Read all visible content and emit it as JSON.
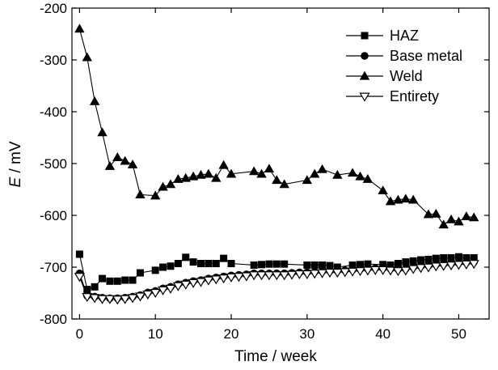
{
  "chart_data": {
    "type": "line",
    "title": "",
    "xlabel": "Time / week",
    "ylabel_italic": "E",
    "ylabel_rest": " / mV",
    "xlim": [
      -1,
      54
    ],
    "ylim": [
      -800,
      -200
    ],
    "xticks": [
      0,
      10,
      20,
      30,
      40,
      50
    ],
    "yticks": [
      -200,
      -300,
      -400,
      -500,
      -600,
      -700,
      -800
    ],
    "grid": false,
    "legend_position": "top-right",
    "series": [
      {
        "name": "HAZ",
        "marker": "square",
        "x": [
          0,
          1,
          2,
          3,
          4,
          5,
          6,
          7,
          8,
          10,
          11,
          12,
          13,
          14,
          15,
          16,
          17,
          18,
          19,
          20,
          23,
          24,
          25,
          26,
          27,
          30,
          31,
          32,
          33,
          34,
          36,
          37,
          38,
          40,
          41,
          42,
          43,
          44,
          45,
          46,
          47,
          48,
          49,
          50,
          51,
          52
        ],
        "y": [
          -675,
          -743,
          -738,
          -722,
          -727,
          -727,
          -725,
          -725,
          -711,
          -706,
          -700,
          -698,
          -693,
          -681,
          -690,
          -693,
          -693,
          -693,
          -683,
          -693,
          -696,
          -695,
          -694,
          -694,
          -694,
          -696,
          -696,
          -696,
          -697,
          -700,
          -696,
          -695,
          -694,
          -695,
          -696,
          -693,
          -690,
          -688,
          -686,
          -685,
          -683,
          -682,
          -682,
          -680,
          -682,
          -682
        ]
      },
      {
        "name": "Base metal",
        "marker": "circle",
        "x": [
          0,
          1,
          2,
          3,
          4,
          5,
          6,
          7,
          8,
          9,
          10,
          11,
          12,
          13,
          14,
          15,
          16,
          17,
          18,
          19,
          20,
          21,
          22,
          23,
          24,
          25,
          26,
          27,
          28,
          29,
          30,
          31,
          32,
          33,
          34,
          35,
          36,
          37,
          38,
          39,
          40,
          41,
          42,
          43,
          44,
          45,
          46,
          47,
          48,
          49,
          50,
          51,
          52
        ],
        "y": [
          -712,
          -755,
          -757,
          -759,
          -760,
          -760,
          -759,
          -757,
          -754,
          -749,
          -746,
          -741,
          -738,
          -733,
          -730,
          -727,
          -725,
          -722,
          -720,
          -718,
          -716,
          -715,
          -714,
          -712,
          -712,
          -712,
          -712,
          -712,
          -711,
          -710,
          -710,
          -709,
          -708,
          -707,
          -707,
          -706,
          -705,
          -704,
          -703,
          -702,
          -702,
          -703,
          -704,
          -703,
          -700,
          -698,
          -697,
          -695,
          -694,
          -693,
          -692,
          -691,
          -690
        ]
      },
      {
        "name": "Weld",
        "marker": "triangle",
        "x": [
          0,
          1,
          2,
          3,
          4,
          5,
          6,
          7,
          8,
          10,
          11,
          12,
          13,
          14,
          15,
          16,
          17,
          18,
          19,
          20,
          23,
          24,
          25,
          26,
          27,
          30,
          31,
          32,
          34,
          36,
          37,
          38,
          40,
          41,
          42,
          43,
          44,
          46,
          47,
          48,
          49,
          50,
          51,
          52
        ],
        "y": [
          -240,
          -295,
          -380,
          -440,
          -505,
          -488,
          -495,
          -502,
          -560,
          -562,
          -545,
          -540,
          -530,
          -528,
          -525,
          -522,
          -520,
          -528,
          -503,
          -520,
          -515,
          -520,
          -510,
          -532,
          -540,
          -532,
          -520,
          -511,
          -522,
          -518,
          -525,
          -530,
          -552,
          -573,
          -570,
          -568,
          -570,
          -598,
          -597,
          -618,
          -608,
          -612,
          -602,
          -604
        ]
      },
      {
        "name": "Entirety",
        "marker": "triangle-down-open",
        "x": [
          0,
          1,
          2,
          3,
          4,
          5,
          6,
          7,
          8,
          9,
          10,
          11,
          12,
          13,
          14,
          15,
          16,
          17,
          18,
          19,
          20,
          21,
          22,
          23,
          24,
          25,
          26,
          27,
          28,
          29,
          30,
          31,
          32,
          33,
          34,
          35,
          36,
          37,
          38,
          39,
          40,
          41,
          42,
          43,
          44,
          45,
          46,
          47,
          48,
          49,
          50,
          51,
          52
        ],
        "y": [
          -718,
          -757,
          -759,
          -761,
          -761,
          -762,
          -761,
          -759,
          -756,
          -752,
          -749,
          -744,
          -741,
          -736,
          -733,
          -730,
          -728,
          -725,
          -723,
          -721,
          -719,
          -718,
          -717,
          -715,
          -715,
          -715,
          -715,
          -715,
          -714,
          -713,
          -713,
          -712,
          -711,
          -710,
          -710,
          -709,
          -708,
          -707,
          -706,
          -705,
          -705,
          -706,
          -707,
          -706,
          -703,
          -701,
          -700,
          -698,
          -697,
          -696,
          -695,
          -694,
          -693
        ]
      }
    ]
  }
}
